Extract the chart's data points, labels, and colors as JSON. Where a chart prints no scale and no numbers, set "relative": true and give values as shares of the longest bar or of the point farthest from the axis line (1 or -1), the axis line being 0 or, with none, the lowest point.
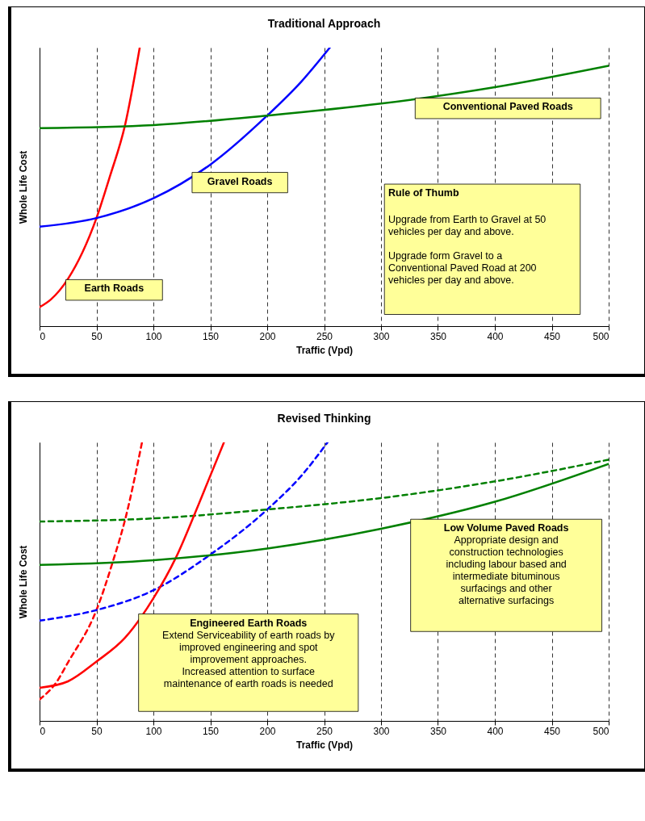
{
  "chart_data": [
    {
      "type": "line",
      "title": "Traditional Approach",
      "xlabel": "Traffic (Vpd)",
      "ylabel": "Whole Life Cost",
      "relative": true,
      "xlim": [
        0,
        500
      ],
      "xticks": [
        0,
        50,
        100,
        150,
        200,
        250,
        300,
        350,
        400,
        450,
        500
      ],
      "grid": "x",
      "tick_labels": "x",
      "marker": "none",
      "series": [
        {
          "name": "Earth Roads",
          "color": "#ff0000",
          "line_style": "solid",
          "x": [
            0,
            10,
            25,
            50,
            62,
            75,
            88
          ],
          "values": [
            0.068,
            0.096,
            0.17,
            0.388,
            0.54,
            0.72,
            1
          ]
        },
        {
          "name": "Gravel Roads",
          "color": "#0000ff",
          "line_style": "solid",
          "x": [
            0,
            50,
            100,
            150,
            200,
            230,
            255
          ],
          "values": [
            0.357,
            0.388,
            0.459,
            0.58,
            0.756,
            0.878,
            1
          ]
        },
        {
          "name": "Conventional Paved Roads",
          "color": "#008000",
          "line_style": "solid",
          "x": [
            0,
            100,
            200,
            300,
            400,
            500
          ],
          "values": [
            0.711,
            0.722,
            0.756,
            0.799,
            0.858,
            0.935
          ]
        }
      ],
      "annotations": [
        "Rule of Thumb",
        "Upgrade from Earth to Gravel at 50\nvehicles per day and above.",
        "Upgrade form Gravel to a\nConventional Paved Road at 200\nvehicles per day and above."
      ]
    },
    {
      "type": "line",
      "title": "Revised Thinking",
      "xlabel": "Traffic (Vpd)",
      "ylabel": "Whole Life Cost",
      "relative": true,
      "xlim": [
        0,
        500
      ],
      "xticks": [
        0,
        50,
        100,
        150,
        200,
        250,
        300,
        350,
        400,
        450,
        500
      ],
      "grid": "x",
      "tick_labels": "x",
      "marker": "none",
      "series": [
        {
          "color": "#ff0000",
          "line_style": "dashed",
          "x": [
            0,
            15,
            25,
            50,
            65,
            75,
            90
          ],
          "values": [
            0.077,
            0.14,
            0.21,
            0.398,
            0.58,
            0.72,
            1
          ]
        },
        {
          "color": "#0000ff",
          "line_style": "dashed",
          "x": [
            0,
            50,
            100,
            150,
            200,
            230,
            253
          ],
          "values": [
            0.36,
            0.398,
            0.469,
            0.597,
            0.759,
            0.88,
            1
          ]
        },
        {
          "color": "#008000",
          "line_style": "dashed",
          "x": [
            0,
            100,
            200,
            300,
            400,
            500
          ],
          "values": [
            0.716,
            0.727,
            0.759,
            0.8,
            0.86,
            0.938
          ]
        },
        {
          "color": "#ff0000",
          "line_style": "solid",
          "x": [
            0,
            25,
            50,
            75,
            100,
            120,
            140,
            162
          ],
          "values": [
            0.119,
            0.142,
            0.213,
            0.298,
            0.44,
            0.588,
            0.78,
            1
          ]
        },
        {
          "name": "Low Volume Paved Roads",
          "color": "#008000",
          "line_style": "solid",
          "x": [
            0,
            100,
            200,
            300,
            400,
            500
          ],
          "values": [
            0.56,
            0.577,
            0.619,
            0.69,
            0.787,
            0.923
          ]
        }
      ],
      "annotations": [
        "Engineered Earth Roads",
        "Extend Serviceability of earth roads by\nimproved engineering and spot\nimprovement approaches.\nIncreased attention to surface\nmaintenance of earth roads is needed",
        "Appropriate design and\nconstruction technologies\nincluding labour based and\nintermediate bituminous\nsurfacings and other\nalternative surfacings"
      ]
    }
  ]
}
